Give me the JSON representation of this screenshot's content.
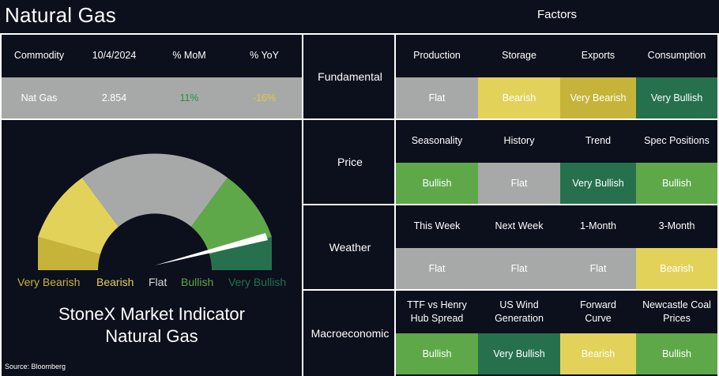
{
  "title": "Natural Gas",
  "factors_title": "Factors",
  "colors": {
    "background": "#0c0f1c",
    "flat": "#a7a9a8",
    "bearish": "#e2d25a",
    "very_bearish": "#c6b43a",
    "bullish": "#5ea84a",
    "very_bullish": "#27704e",
    "mom_positive": "#2f8a47",
    "yoy_negative": "#e3c84a"
  },
  "commodity_table": {
    "headers": [
      "Commodity",
      "10/4/2024",
      "% MoM",
      "% YoY"
    ],
    "row": [
      "Nat Gas",
      "2.854",
      "11%",
      "-16%"
    ]
  },
  "gauge": {
    "legend": [
      "Very Bearish",
      "Bearish",
      "Flat",
      "Bullish",
      "Very Bullish"
    ],
    "indicator_level": "Bullish"
  },
  "indicator_title_line1": "StoneX Market Indicator",
  "indicator_title_line2": "Natural Gas",
  "source": "Source: Bloomberg",
  "factor_rows": [
    {
      "label": "Fundamental",
      "factors": [
        {
          "name": "Production",
          "signal": "Flat"
        },
        {
          "name": "Storage",
          "signal": "Bearish"
        },
        {
          "name": "Exports",
          "signal": "Very Bearish"
        },
        {
          "name": "Consumption",
          "signal": "Very Bullish"
        }
      ]
    },
    {
      "label": "Price",
      "factors": [
        {
          "name": "Seasonality",
          "signal": "Bullish"
        },
        {
          "name": "History",
          "signal": "Flat"
        },
        {
          "name": "Trend",
          "signal": "Very Bullish"
        },
        {
          "name": "Spec Positions",
          "signal": "Bullish"
        }
      ]
    },
    {
      "label": "Weather",
      "factors": [
        {
          "name": "This Week",
          "signal": "Flat"
        },
        {
          "name": "Next Week",
          "signal": "Flat"
        },
        {
          "name": "1-Month",
          "signal": "Flat"
        },
        {
          "name": "3-Month",
          "signal": "Bearish"
        }
      ]
    },
    {
      "label": "Macroeconomic",
      "factors": [
        {
          "name": "TTF vs Henry Hub Spread",
          "signal": "Bullish"
        },
        {
          "name": "US Wind Generation",
          "signal": "Very Bullish"
        },
        {
          "name": "Forward Curve",
          "signal": "Bearish"
        },
        {
          "name": "Newcastle Coal Prices",
          "signal": "Bullish"
        }
      ]
    }
  ]
}
